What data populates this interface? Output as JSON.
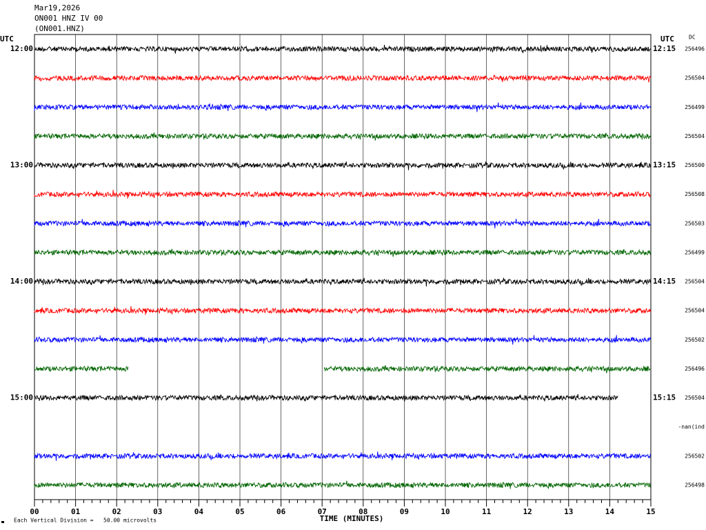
{
  "chart_data": {
    "type": "helicorder",
    "title": "Mar19,2026",
    "subtitle": "ON001 HNZ IV 00",
    "channel": "(ON001.HNZ)",
    "left_unit": "UTC",
    "right_unit": "UTC",
    "dc_label": "DC",
    "xlabel": "TIME (MINUTES)",
    "scale_note": "Each Vertical Division =   50.00 microvolts",
    "xlim": [
      0,
      15
    ],
    "xticks": [
      {
        "value": 0,
        "label": "00"
      },
      {
        "value": 1,
        "label": "01"
      },
      {
        "value": 2,
        "label": "02"
      },
      {
        "value": 3,
        "label": "03"
      },
      {
        "value": 4,
        "label": "04"
      },
      {
        "value": 5,
        "label": "05"
      },
      {
        "value": 6,
        "label": "06"
      },
      {
        "value": 7,
        "label": "07"
      },
      {
        "value": 8,
        "label": "08"
      },
      {
        "value": 9,
        "label": "09"
      },
      {
        "value": 10,
        "label": "10"
      },
      {
        "value": 11,
        "label": "11"
      },
      {
        "value": 12,
        "label": "12"
      },
      {
        "value": 13,
        "label": "13"
      },
      {
        "value": 14,
        "label": "14"
      },
      {
        "value": 15,
        "label": "15"
      }
    ],
    "rows": [
      {
        "left": "12:00",
        "right": "12:15",
        "color": "#000000",
        "segments": [
          [
            0,
            15
          ]
        ],
        "dc": 256496
      },
      {
        "color": "#ff0000",
        "segments": [
          [
            0,
            15
          ]
        ],
        "dc": 256504
      },
      {
        "color": "#0000ff",
        "segments": [
          [
            0,
            15
          ]
        ],
        "dc": 256499
      },
      {
        "color": "#006400",
        "segments": [
          [
            0,
            15
          ]
        ],
        "dc": 256504
      },
      {
        "left": "13:00",
        "right": "13:15",
        "color": "#000000",
        "segments": [
          [
            0,
            15
          ]
        ],
        "dc": 256500
      },
      {
        "color": "#ff0000",
        "segments": [
          [
            0,
            15
          ]
        ],
        "dc": 256508
      },
      {
        "color": "#0000ff",
        "segments": [
          [
            0,
            15
          ]
        ],
        "dc": 256503
      },
      {
        "color": "#006400",
        "segments": [
          [
            0,
            15
          ]
        ],
        "dc": 256499
      },
      {
        "left": "14:00",
        "right": "14:15",
        "color": "#000000",
        "segments": [
          [
            0,
            15
          ]
        ],
        "dc": 256504
      },
      {
        "color": "#ff0000",
        "segments": [
          [
            0,
            15
          ]
        ],
        "dc": 256504
      },
      {
        "color": "#0000ff",
        "segments": [
          [
            0,
            15
          ]
        ],
        "dc": 256502
      },
      {
        "color": "#006400",
        "segments": [
          [
            0,
            2.28
          ],
          [
            7.05,
            15
          ]
        ],
        "dc": 256496
      },
      {
        "left": "15:00",
        "right": "15:15",
        "color": "#000000",
        "segments": [
          [
            0,
            14.2
          ]
        ],
        "dc": 256504
      },
      {
        "color": "#ff0000",
        "segments": [],
        "dc": "-nan(ind"
      },
      {
        "color": "#0000ff",
        "segments": [
          [
            0,
            15
          ]
        ],
        "dc": 256502
      },
      {
        "color": "#006400",
        "segments": [
          [
            0,
            15
          ]
        ],
        "dc": 256498
      }
    ]
  }
}
